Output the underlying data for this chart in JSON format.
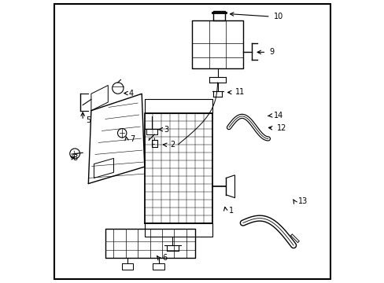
{
  "background_color": "#ffffff",
  "border_color": "#000000",
  "line_color": "#000000",
  "label_color": "#000000",
  "figsize": [
    4.89,
    3.6
  ],
  "dpi": 100
}
